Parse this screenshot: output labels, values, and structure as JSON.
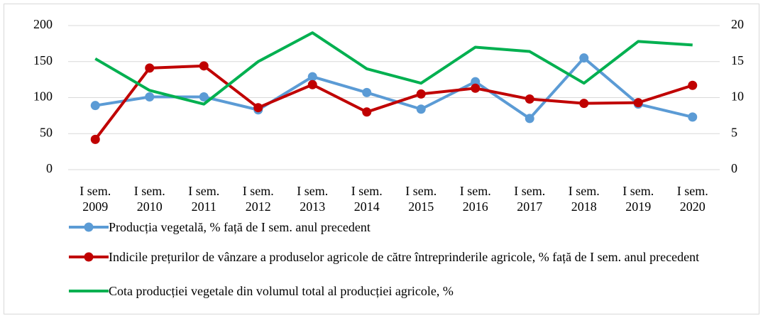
{
  "chart_data": {
    "type": "line",
    "categories": [
      "I sem. 2009",
      "I sem. 2010",
      "I sem. 2011",
      "I sem. 2012",
      "I sem. 2013",
      "I sem. 2014",
      "I sem. 2015",
      "I sem. 2016",
      "I sem. 2017",
      "I sem. 2018",
      "I sem. 2019",
      "I sem. 2020"
    ],
    "series": [
      {
        "name": "Producția vegetală, % față de I sem. anul precedent",
        "color": "#5b9bd5",
        "marker": true,
        "values": [
          89,
          101,
          101,
          83,
          129,
          107,
          84,
          122,
          71,
          155,
          91,
          73
        ]
      },
      {
        "name": "Indicile prețurilor de vânzare a produselor agricole de către întreprinderile agricole, % față de I sem. anul precedent",
        "color": "#c00000",
        "marker": true,
        "values": [
          42,
          141,
          144,
          86,
          118,
          80,
          105,
          113,
          98,
          92,
          93,
          117
        ]
      },
      {
        "name": "Cota producției vegetale din volumul total al producției agricole, %",
        "color": "#00b050",
        "marker": false,
        "axis": "y2",
        "values": [
          15.4,
          11,
          9.1,
          15,
          19,
          14,
          12,
          17,
          16.4,
          12,
          17.8,
          17.3
        ]
      }
    ],
    "ylim": [
      0,
      200
    ],
    "yticks": [
      0,
      50,
      100,
      150,
      200
    ],
    "y2lim": [
      0,
      20
    ],
    "y2ticks": [
      0,
      5,
      10,
      15,
      20
    ],
    "grid": true,
    "legend": "bottom"
  }
}
